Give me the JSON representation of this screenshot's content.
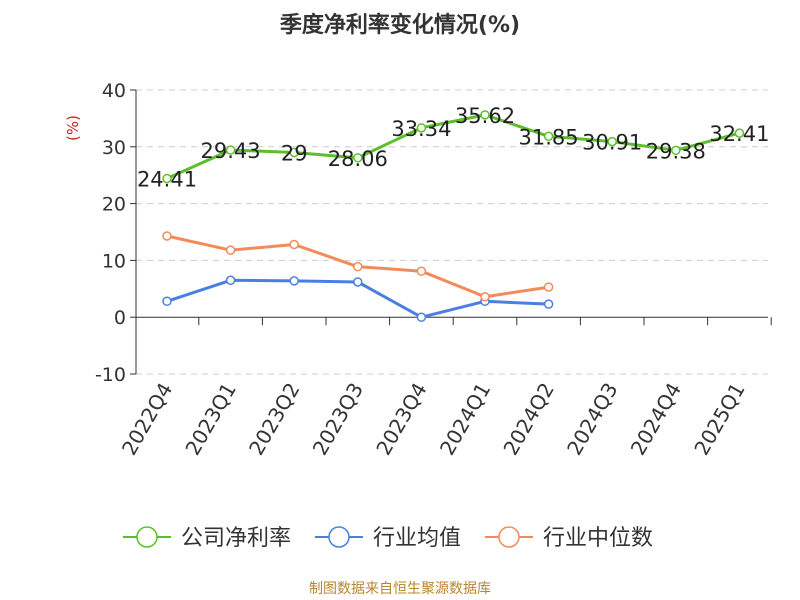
{
  "chart_data": {
    "type": "line",
    "title": "季度净利率变化情况(%)",
    "ylabel": "(%)",
    "xlabel": "",
    "ylim": [
      -10,
      40
    ],
    "yticks": [
      40,
      30,
      20,
      10,
      0,
      -10
    ],
    "grid": true,
    "legend_position": "bottom",
    "categories": [
      "2022Q4",
      "2023Q1",
      "2023Q2",
      "2023Q3",
      "2023Q4",
      "2024Q1",
      "2024Q2",
      "2024Q3",
      "2024Q4",
      "2025Q1"
    ],
    "series": [
      {
        "name": "公司净利率",
        "color": "#5cbf2a",
        "values": [
          24.41,
          29.43,
          29,
          28.06,
          33.34,
          35.62,
          31.85,
          30.91,
          29.38,
          32.41
        ],
        "labels": [
          "24.41",
          "29.43",
          "29",
          "28.06",
          "33.34",
          "35.62",
          "31.85",
          "30.91",
          "29.38",
          "32.41"
        ]
      },
      {
        "name": "行业均值",
        "color": "#4a7fe0",
        "values": [
          2.8,
          6.5,
          6.4,
          6.2,
          0.0,
          2.8,
          2.3,
          null,
          null,
          null
        ]
      },
      {
        "name": "行业中位数",
        "color": "#f28a5a",
        "values": [
          14.3,
          11.8,
          12.8,
          8.9,
          8.1,
          3.6,
          5.3,
          null,
          null,
          null
        ]
      }
    ]
  },
  "footer": "制图数据来自恒生聚源数据库"
}
